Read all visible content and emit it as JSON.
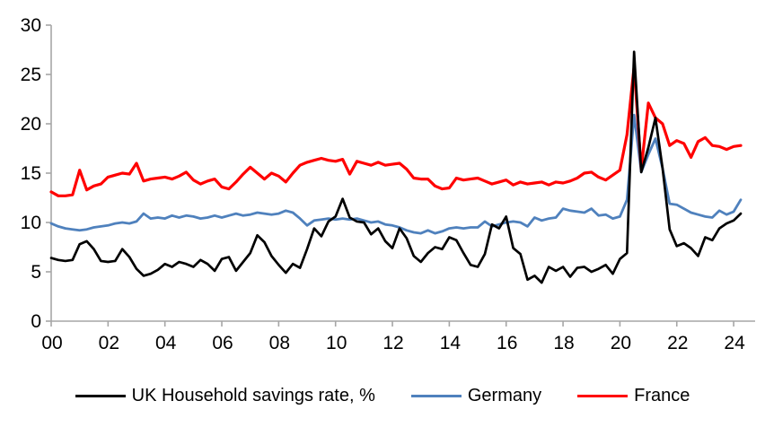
{
  "chart_data": {
    "type": "line",
    "title": "",
    "xlabel": "",
    "ylabel": "",
    "frequency": "quarterly",
    "period_start": "2000Q1",
    "period_end": "2024Q2",
    "x_axis": {
      "tick_labels": [
        "00",
        "02",
        "04",
        "06",
        "08",
        "10",
        "12",
        "14",
        "16",
        "18",
        "20",
        "22",
        "24"
      ]
    },
    "y_axis": {
      "ticks": [
        "0",
        "5",
        "10",
        "15",
        "20",
        "25",
        "30"
      ],
      "min": 0,
      "max": 30
    },
    "grid": "off",
    "legend_position": "bottom",
    "axis_color": "#A6A6A6",
    "series": [
      {
        "name": "Germany",
        "color": "#4F81BD",
        "stroke_width": 2.8,
        "values": [
          9.9,
          9.6,
          9.4,
          9.3,
          9.2,
          9.3,
          9.5,
          9.6,
          9.7,
          9.9,
          10.0,
          9.9,
          10.1,
          10.9,
          10.4,
          10.5,
          10.4,
          10.7,
          10.5,
          10.7,
          10.6,
          10.4,
          10.5,
          10.7,
          10.5,
          10.7,
          10.9,
          10.7,
          10.8,
          11.0,
          10.9,
          10.8,
          10.9,
          11.2,
          11.0,
          10.4,
          9.7,
          10.2,
          10.3,
          10.4,
          10.3,
          10.4,
          10.3,
          10.4,
          10.2,
          10.0,
          10.1,
          9.8,
          9.7,
          9.5,
          9.2,
          9.0,
          8.9,
          9.2,
          8.9,
          9.1,
          9.4,
          9.5,
          9.4,
          9.5,
          9.5,
          10.1,
          9.6,
          9.8,
          10.0,
          10.1,
          10.0,
          9.6,
          10.5,
          10.2,
          10.4,
          10.5,
          11.4,
          11.2,
          11.1,
          11.0,
          11.4,
          10.7,
          10.8,
          10.4,
          10.6,
          12.3,
          20.9,
          15.1,
          16.9,
          18.5,
          15.5,
          11.9,
          11.8,
          11.4,
          11.0,
          10.8,
          10.6,
          10.5,
          11.2,
          10.8,
          11.1,
          12.3
        ]
      },
      {
        "name": "France",
        "color": "#FF0000",
        "stroke_width": 3.2,
        "values": [
          13.1,
          12.7,
          12.7,
          12.8,
          15.3,
          13.3,
          13.7,
          13.9,
          14.6,
          14.8,
          15.0,
          14.9,
          16.0,
          14.2,
          14.4,
          14.5,
          14.6,
          14.4,
          14.7,
          15.1,
          14.3,
          13.9,
          14.2,
          14.4,
          13.6,
          13.4,
          14.1,
          14.9,
          15.6,
          15.0,
          14.4,
          15.0,
          14.7,
          14.1,
          15.0,
          15.8,
          16.1,
          16.3,
          16.5,
          16.3,
          16.2,
          16.4,
          14.9,
          16.2,
          16.0,
          15.8,
          16.1,
          15.8,
          15.9,
          16.0,
          15.4,
          14.5,
          14.4,
          14.4,
          13.7,
          13.4,
          13.5,
          14.5,
          14.3,
          14.4,
          14.5,
          14.2,
          13.9,
          14.1,
          14.3,
          13.8,
          14.1,
          13.9,
          14.0,
          14.1,
          13.8,
          14.1,
          14.0,
          14.2,
          14.5,
          15.0,
          15.1,
          14.6,
          14.3,
          14.8,
          15.3,
          18.9,
          25.8,
          15.4,
          22.1,
          20.6,
          20.0,
          17.8,
          18.3,
          18.0,
          16.6,
          18.2,
          18.6,
          17.8,
          17.7,
          17.4,
          17.7,
          17.8
        ]
      },
      {
        "name": "UK Household savings rate, %",
        "color": "#000000",
        "stroke_width": 2.7,
        "values": [
          6.4,
          6.2,
          6.1,
          6.2,
          7.8,
          8.1,
          7.3,
          6.1,
          6.0,
          6.1,
          7.3,
          6.5,
          5.3,
          4.6,
          4.8,
          5.2,
          5.8,
          5.5,
          6.0,
          5.8,
          5.5,
          6.2,
          5.8,
          5.1,
          6.3,
          6.5,
          5.1,
          6.0,
          6.9,
          8.7,
          8.0,
          6.6,
          5.7,
          4.9,
          5.8,
          5.4,
          7.3,
          9.4,
          8.6,
          10.1,
          10.6,
          12.4,
          10.5,
          10.1,
          10.0,
          8.8,
          9.4,
          8.1,
          7.4,
          9.4,
          8.4,
          6.6,
          6.0,
          6.9,
          7.5,
          7.3,
          8.5,
          8.2,
          6.9,
          5.7,
          5.5,
          6.8,
          9.8,
          9.4,
          10.6,
          7.4,
          6.8,
          4.2,
          4.6,
          3.9,
          5.5,
          5.1,
          5.5,
          4.5,
          5.4,
          5.5,
          5.0,
          5.3,
          5.7,
          4.8,
          6.3,
          6.9,
          27.3,
          15.1,
          17.6,
          20.6,
          15.5,
          9.3,
          7.6,
          7.9,
          7.4,
          6.6,
          8.5,
          8.2,
          9.4,
          9.9,
          10.2,
          10.9
        ]
      }
    ],
    "legend_order": [
      2,
      0,
      1
    ]
  }
}
